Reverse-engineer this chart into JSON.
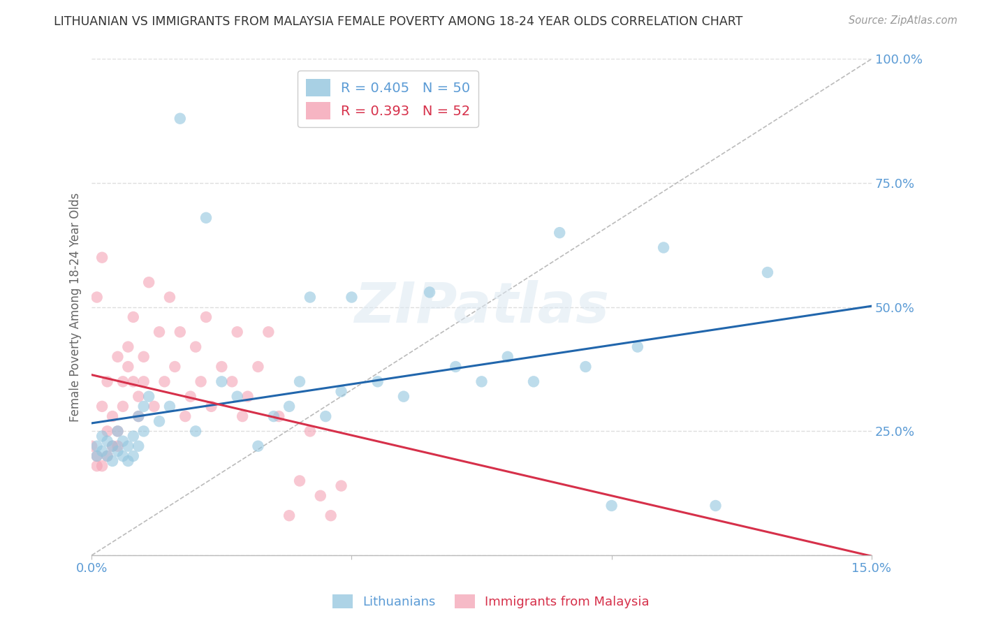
{
  "title": "LITHUANIAN VS IMMIGRANTS FROM MALAYSIA FEMALE POVERTY AMONG 18-24 YEAR OLDS CORRELATION CHART",
  "source": "Source: ZipAtlas.com",
  "ylabel": "Female Poverty Among 18-24 Year Olds",
  "xmin": 0.0,
  "xmax": 0.15,
  "ymin": 0.0,
  "ymax": 1.0,
  "series1_color": "#92c5de",
  "series2_color": "#f4a3b5",
  "line1_color": "#2166ac",
  "line2_color": "#d6304a",
  "diag_color": "#bbbbbb",
  "background_color": "#ffffff",
  "grid_color": "#dddddd",
  "axis_color": "#5b9bd5",
  "axis_label_color": "#5b9bd5",
  "watermark": "ZIPatlas",
  "R1": 0.405,
  "N1": 50,
  "R2": 0.393,
  "N2": 52,
  "lit_x": [
    0.001,
    0.001,
    0.002,
    0.002,
    0.003,
    0.003,
    0.004,
    0.004,
    0.005,
    0.005,
    0.006,
    0.006,
    0.007,
    0.007,
    0.008,
    0.008,
    0.009,
    0.009,
    0.01,
    0.01,
    0.011,
    0.013,
    0.015,
    0.017,
    0.02,
    0.022,
    0.025,
    0.028,
    0.032,
    0.035,
    0.038,
    0.04,
    0.042,
    0.045,
    0.048,
    0.05,
    0.055,
    0.06,
    0.065,
    0.07,
    0.075,
    0.08,
    0.085,
    0.09,
    0.095,
    0.1,
    0.105,
    0.11,
    0.12,
    0.13
  ],
  "lit_y": [
    0.22,
    0.2,
    0.21,
    0.24,
    0.2,
    0.23,
    0.19,
    0.22,
    0.21,
    0.25,
    0.2,
    0.23,
    0.22,
    0.19,
    0.24,
    0.2,
    0.28,
    0.22,
    0.25,
    0.3,
    0.32,
    0.27,
    0.3,
    0.88,
    0.25,
    0.68,
    0.35,
    0.32,
    0.22,
    0.28,
    0.3,
    0.35,
    0.52,
    0.28,
    0.33,
    0.52,
    0.35,
    0.32,
    0.53,
    0.38,
    0.35,
    0.4,
    0.35,
    0.65,
    0.38,
    0.1,
    0.42,
    0.62,
    0.1,
    0.57
  ],
  "mal_x": [
    0.0,
    0.001,
    0.001,
    0.001,
    0.002,
    0.002,
    0.002,
    0.003,
    0.003,
    0.003,
    0.004,
    0.004,
    0.005,
    0.005,
    0.005,
    0.006,
    0.006,
    0.007,
    0.007,
    0.008,
    0.008,
    0.009,
    0.009,
    0.01,
    0.01,
    0.011,
    0.012,
    0.013,
    0.014,
    0.015,
    0.016,
    0.017,
    0.018,
    0.019,
    0.02,
    0.021,
    0.022,
    0.023,
    0.025,
    0.027,
    0.028,
    0.029,
    0.03,
    0.032,
    0.034,
    0.036,
    0.038,
    0.04,
    0.042,
    0.044,
    0.046,
    0.048
  ],
  "mal_y": [
    0.22,
    0.52,
    0.2,
    0.18,
    0.6,
    0.3,
    0.18,
    0.25,
    0.35,
    0.2,
    0.28,
    0.22,
    0.4,
    0.25,
    0.22,
    0.35,
    0.3,
    0.42,
    0.38,
    0.35,
    0.48,
    0.32,
    0.28,
    0.4,
    0.35,
    0.55,
    0.3,
    0.45,
    0.35,
    0.52,
    0.38,
    0.45,
    0.28,
    0.32,
    0.42,
    0.35,
    0.48,
    0.3,
    0.38,
    0.35,
    0.45,
    0.28,
    0.32,
    0.38,
    0.45,
    0.28,
    0.08,
    0.15,
    0.25,
    0.12,
    0.08,
    0.14
  ]
}
